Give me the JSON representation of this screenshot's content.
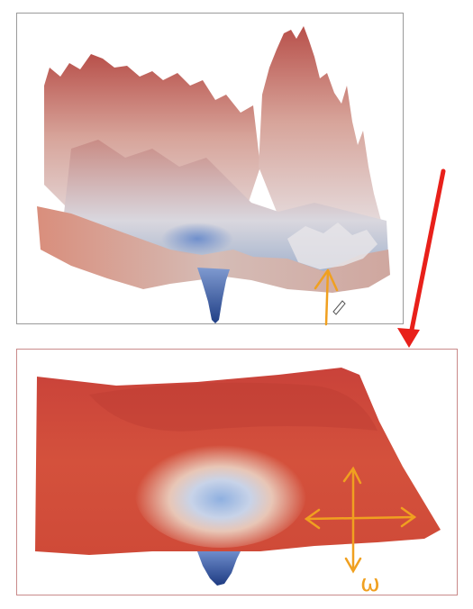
{
  "colors": {
    "frame_top_border": "#9a9a9a",
    "frame_bottom_border": "#c98a8a",
    "surface_red": "#d2503c",
    "surface_light": "#e9e6ea",
    "surface_blue": "#2f4f8f",
    "arrow_red": "#e8201a",
    "annotation_orange": "#f0a020"
  },
  "annotations": {
    "omega_label": "ω"
  }
}
